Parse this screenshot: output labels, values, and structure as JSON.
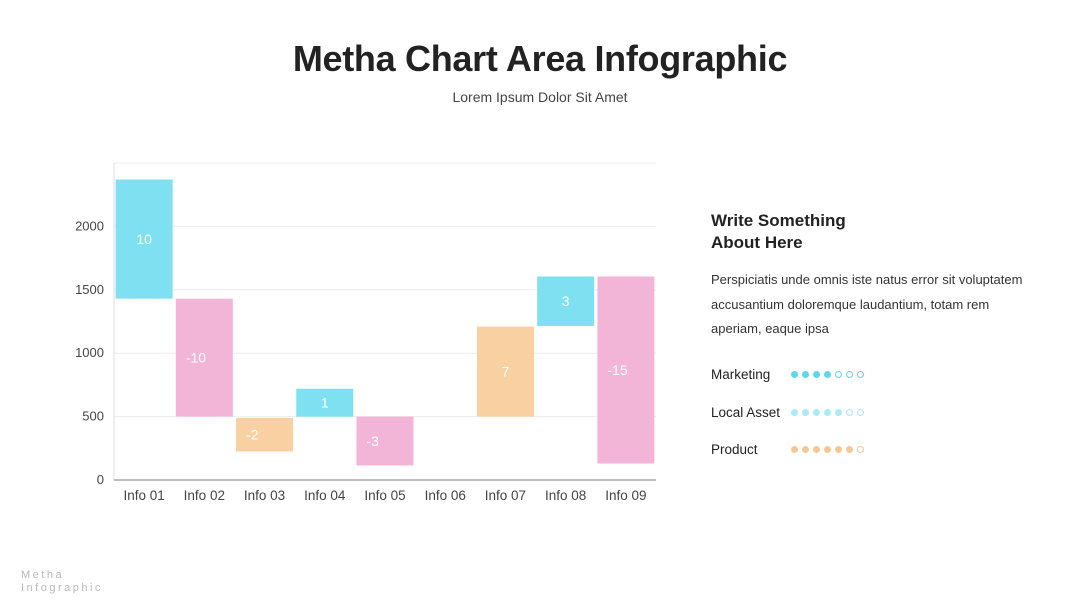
{
  "header": {
    "title": "Metha Chart Area Infographic",
    "subtitle": "Lorem Ipsum Dolor Sit Amet"
  },
  "chart_data": {
    "type": "bar",
    "subtype": "waterfall",
    "categories": [
      "Info 01",
      "Info 02",
      "Info 03",
      "Info 04",
      "Info 05",
      "Info 06",
      "Info 07",
      "Info 08",
      "Info 09"
    ],
    "labels": [
      "10",
      "-10",
      "-2",
      "1",
      "-3",
      "7",
      "3",
      "-15"
    ],
    "bar_labels": [
      "10",
      "-10",
      "-2",
      "1",
      "-3",
      "",
      "7",
      "3",
      "-15"
    ],
    "ranges": [
      [
        1430,
        2370
      ],
      [
        500,
        1430
      ],
      [
        225,
        490
      ],
      [
        500,
        720
      ],
      [
        115,
        500
      ],
      null,
      [
        500,
        1210
      ],
      [
        1215,
        1605
      ],
      [
        130,
        1605
      ]
    ],
    "colors": [
      "#7ee0f0",
      "#f2b5d8",
      "#f9d0a2",
      "#7ee0f0",
      "#f2b5d8",
      null,
      "#f9d0a2",
      "#7ee0f0",
      "#f2b5d8"
    ],
    "y_ticks": [
      "0",
      "500",
      "1000",
      "1500",
      "2000"
    ],
    "y_tick_values": [
      0,
      500,
      1000,
      1500,
      2000
    ],
    "ylim": [
      0,
      2500
    ],
    "grid": true,
    "title": "",
    "xlabel": "",
    "ylabel": ""
  },
  "side": {
    "heading": "Write Something\nAbout Here",
    "body": "Perspiciatis unde omnis iste natus error sit voluptatem accusantium doloremque laudantium, totam rem aperiam, eaque ipsa"
  },
  "meters": [
    {
      "label": "Marketing",
      "filled": 4,
      "total": 7,
      "color": "#5fd6ea"
    },
    {
      "label": "Local Asset",
      "filled": 5,
      "total": 7,
      "color": "#a9eaf4"
    },
    {
      "label": "Product",
      "filled": 6,
      "total": 7,
      "color": "#f7c793"
    }
  ],
  "brand": {
    "line1": "Metha",
    "line2": "Infographic"
  }
}
